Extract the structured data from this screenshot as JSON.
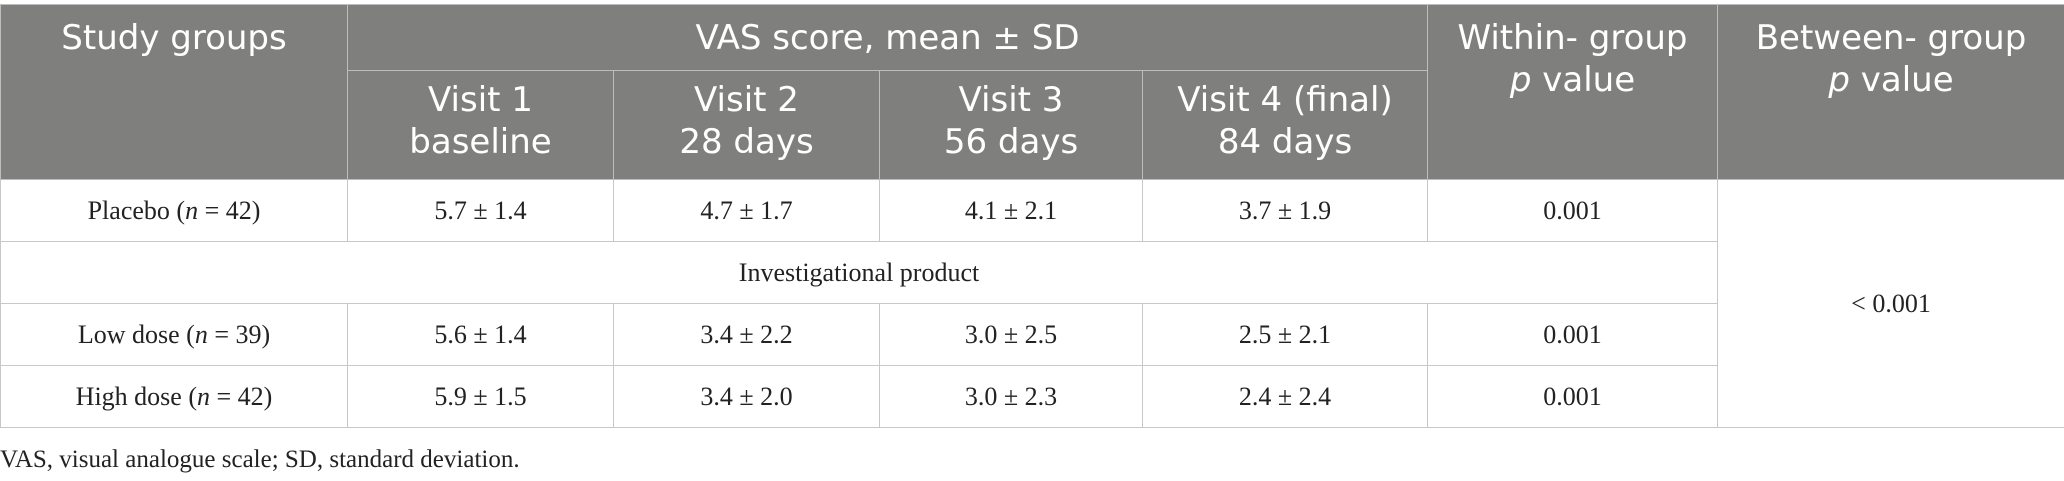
{
  "table": {
    "header": {
      "study_groups": "Study groups",
      "vas": "VAS score, mean ± SD",
      "within_line1": "Within- group",
      "within_italic": "p",
      "within_rest": " value",
      "between_line1": "Between- group",
      "between_italic": "p",
      "between_rest": " value",
      "visits": [
        {
          "line1": "Visit 1",
          "line2": "baseline"
        },
        {
          "line1": "Visit 2",
          "line2": "28 days"
        },
        {
          "line1": "Visit 3",
          "line2": "56 days"
        },
        {
          "line1": "Visit 4 (final)",
          "line2": "84 days"
        }
      ]
    },
    "rows": [
      {
        "label": "Placebo (",
        "n_italic": "n",
        "n_rest": " = 42)",
        "values": [
          "5.7 ± 1.4",
          "4.7 ± 1.7",
          "4.1 ± 2.1",
          "3.7 ± 1.9"
        ],
        "within_p": "0.001"
      },
      {
        "section": "Investigational product"
      },
      {
        "label": "Low dose (",
        "n_italic": "n",
        "n_rest": " = 39)",
        "values": [
          "5.6 ± 1.4",
          "3.4 ± 2.2",
          "3.0 ± 2.5",
          "2.5 ± 2.1"
        ],
        "within_p": "0.001"
      },
      {
        "label": "High dose (",
        "n_italic": "n",
        "n_rest": " = 42)",
        "values": [
          "5.9 ± 1.5",
          "3.4 ± 2.0",
          "3.0 ± 2.3",
          "2.4 ± 2.4"
        ],
        "within_p": "0.001"
      }
    ],
    "between_p": "< 0.001"
  },
  "footnote": "VAS, visual analogue scale; SD, standard deviation."
}
